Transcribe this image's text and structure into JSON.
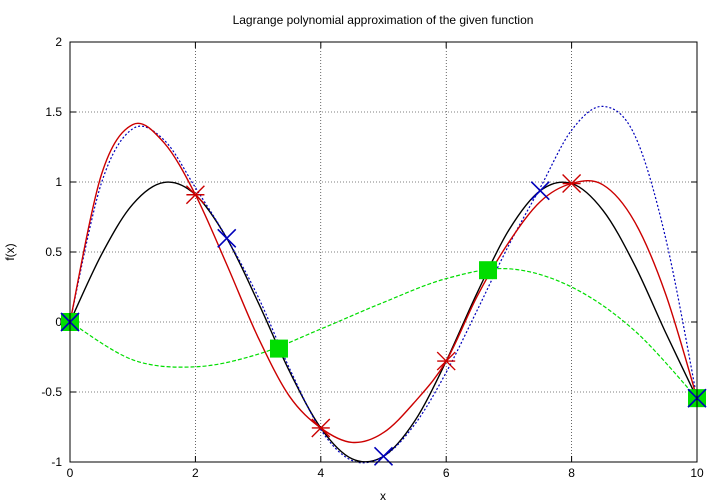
{
  "chart_data": {
    "type": "line",
    "title": "Lagrange polynomial approximation of the given function",
    "xlabel": "x",
    "ylabel": "f(x)",
    "xlim": [
      0,
      10
    ],
    "ylim": [
      -1,
      2
    ],
    "xticks": [
      0,
      2,
      4,
      6,
      8,
      10
    ],
    "yticks": [
      -1,
      -0.5,
      0,
      0.5,
      1,
      1.5,
      2
    ],
    "ytick_labels": [
      "-1",
      "-0.5",
      "0",
      "0.5",
      "1",
      "1.5",
      "2"
    ],
    "grid": true,
    "series": [
      {
        "color": "#000000",
        "style": "solid",
        "x": [
          0,
          0.5,
          1,
          1.5,
          2,
          2.5,
          3,
          3.5,
          4,
          4.5,
          5,
          5.5,
          6,
          6.5,
          7,
          7.5,
          8,
          8.5,
          9,
          9.5,
          10
        ],
        "y": [
          0,
          0.479,
          0.841,
          0.997,
          0.909,
          0.598,
          0.141,
          -0.351,
          -0.757,
          -0.978,
          -0.959,
          -0.706,
          -0.279,
          0.215,
          0.657,
          0.938,
          0.989,
          0.798,
          0.412,
          -0.075,
          -0.544
        ]
      },
      {
        "color": "#00dd00",
        "style": "dashed",
        "marker": "square",
        "x": [
          0,
          1,
          2,
          3,
          4,
          5,
          6,
          7,
          8,
          9,
          10
        ],
        "y": [
          0,
          -0.27,
          -0.32,
          -0.23,
          -0.05,
          0.14,
          0.31,
          0.38,
          0.25,
          -0.06,
          -0.544
        ],
        "points_x": [
          0,
          3.333,
          6.667,
          10
        ],
        "points_y": [
          0,
          -0.19,
          0.37,
          -0.544
        ]
      },
      {
        "color": "#0000bb",
        "style": "dotted",
        "marker": "x",
        "x": [
          0,
          0.5,
          1,
          1.5,
          2,
          2.5,
          3,
          3.5,
          4,
          4.5,
          5,
          5.5,
          6,
          6.5,
          7,
          7.5,
          8,
          8.5,
          9,
          9.5,
          10
        ],
        "y": [
          0,
          0.99,
          1.38,
          1.3,
          0.96,
          0.6,
          0.18,
          -0.33,
          -0.77,
          -0.99,
          -0.96,
          -0.73,
          -0.36,
          0.09,
          0.55,
          0.96,
          1.37,
          1.54,
          1.34,
          0.6,
          -0.544
        ],
        "points_x": [
          0,
          2.5,
          5,
          7.5,
          10
        ],
        "points_y": [
          0,
          0.598,
          -0.959,
          0.938,
          -0.544
        ]
      },
      {
        "color": "#cc0000",
        "style": "solid",
        "marker": "star",
        "x": [
          0,
          0.5,
          1,
          1.5,
          2,
          2.5,
          3,
          3.5,
          4,
          4.5,
          5,
          5.5,
          6,
          6.5,
          7,
          7.5,
          8,
          8.5,
          9,
          9.5,
          10
        ],
        "y": [
          0,
          1.05,
          1.41,
          1.28,
          0.909,
          0.41,
          -0.11,
          -0.53,
          -0.757,
          -0.86,
          -0.79,
          -0.57,
          -0.279,
          0.19,
          0.57,
          0.86,
          0.989,
          0.98,
          0.72,
          0.2,
          -0.544
        ],
        "points_x": [
          2,
          4,
          6,
          8
        ],
        "points_y": [
          0.909,
          -0.757,
          -0.279,
          0.989
        ]
      }
    ]
  }
}
